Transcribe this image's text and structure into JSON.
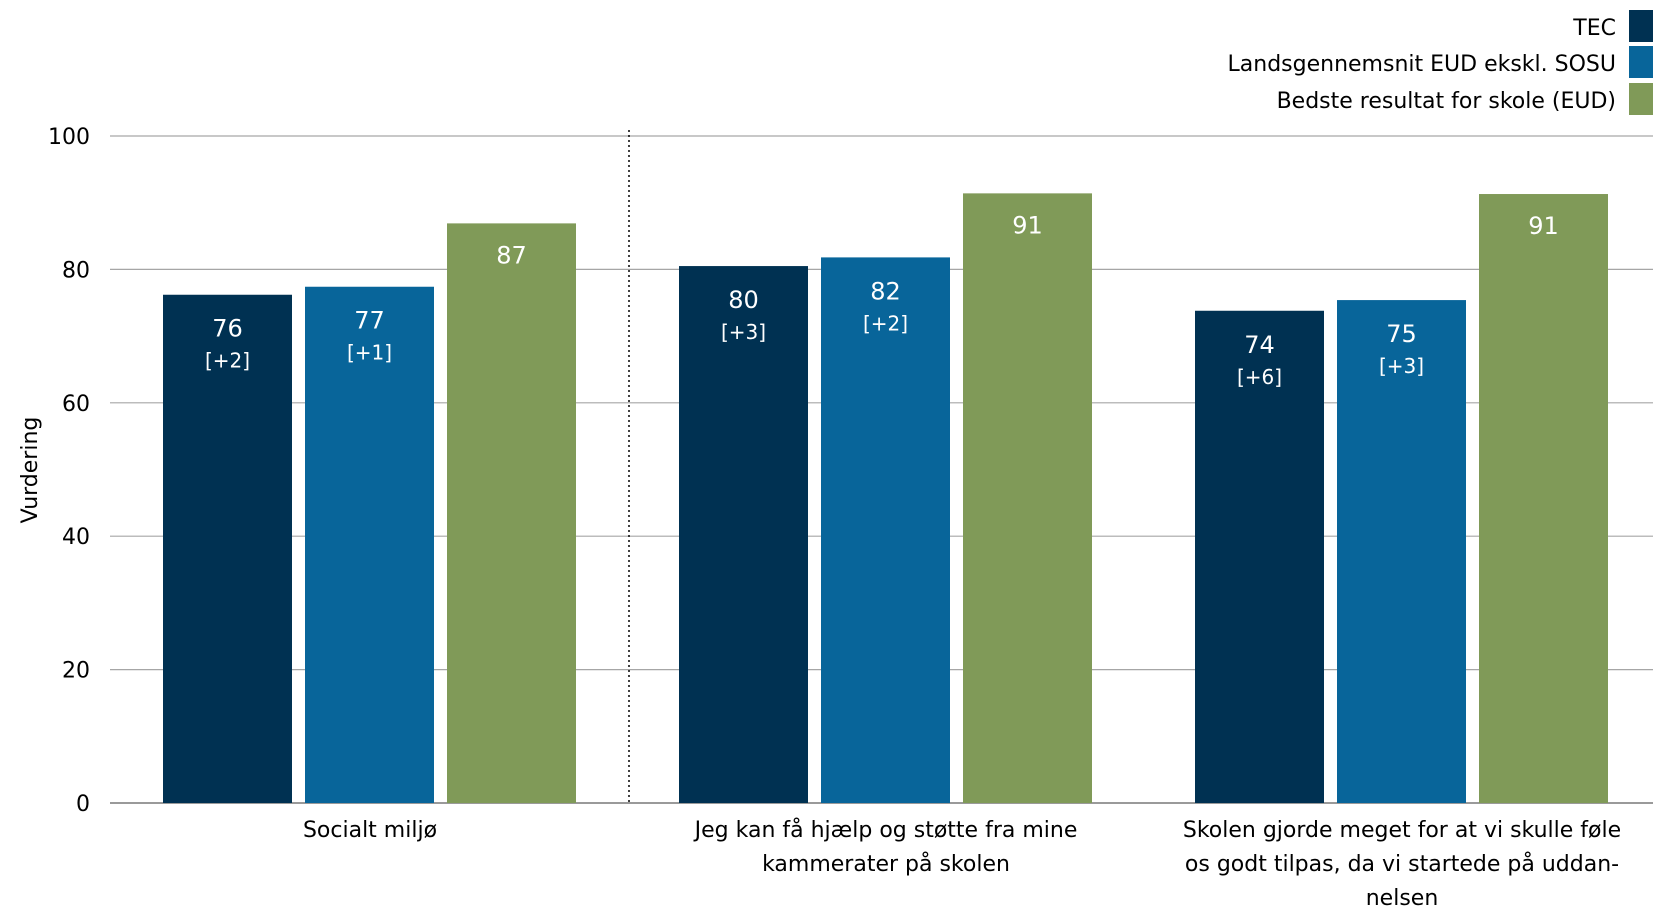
{
  "chart_data": {
    "type": "bar",
    "ylabel": "Vurdering",
    "ylim": [
      0,
      100
    ],
    "yticks": [
      0,
      20,
      40,
      60,
      80,
      100
    ],
    "grid": true,
    "legend_position": "top-right",
    "categories": [
      [
        "Socialt miljø"
      ],
      [
        "Jeg kan få hjælp og støtte fra mine",
        "kammerater på skolen"
      ],
      [
        "Skolen gjorde meget for at vi skulle føle",
        "os godt tilpas, da vi startede på uddan-",
        "nelsen"
      ]
    ],
    "series": [
      {
        "name": "TEC",
        "color": "#003152",
        "values": [
          76.2,
          80.5,
          73.8
        ],
        "labels": [
          "76",
          "80",
          "74"
        ],
        "deltas": [
          "[+2]",
          "[+3]",
          "[+6]"
        ]
      },
      {
        "name": "Landsgennemsnit EUD ekskl. SOSU",
        "color": "#08659a",
        "values": [
          77.4,
          81.8,
          75.4
        ],
        "labels": [
          "77",
          "82",
          "75"
        ],
        "deltas": [
          "[+1]",
          "[+2]",
          "[+3]"
        ]
      },
      {
        "name": "Bedste resultat for skole (EUD)",
        "color": "#809a58",
        "values": [
          86.9,
          91.4,
          91.3
        ],
        "labels": [
          "87",
          "91",
          "91"
        ],
        "deltas": [
          "",
          "",
          ""
        ]
      }
    ],
    "separator_after_category": 0
  }
}
